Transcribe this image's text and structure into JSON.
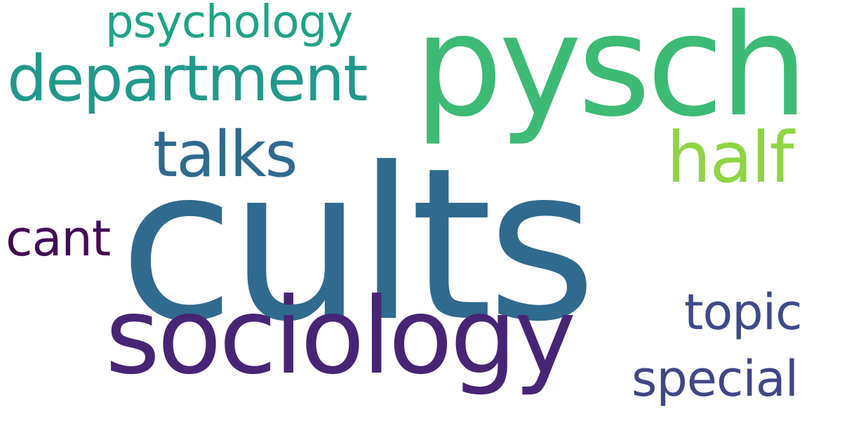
{
  "background": "#ffffff",
  "words": [
    {
      "text": "cults",
      "color": "#306a8e"
    },
    {
      "text": "pysch",
      "color": "#3cba76"
    },
    {
      "text": "sociology",
      "color": "#472575"
    },
    {
      "text": "department",
      "color": "#21998a"
    },
    {
      "text": "talks",
      "color": "#306a8e"
    },
    {
      "text": "half",
      "color": "#8fd445"
    },
    {
      "text": "psychology",
      "color": "#20a386"
    },
    {
      "text": "cant",
      "color": "#440b55"
    },
    {
      "text": "topic",
      "color": "#3e4a89"
    },
    {
      "text": "special",
      "color": "#404686"
    }
  ]
}
